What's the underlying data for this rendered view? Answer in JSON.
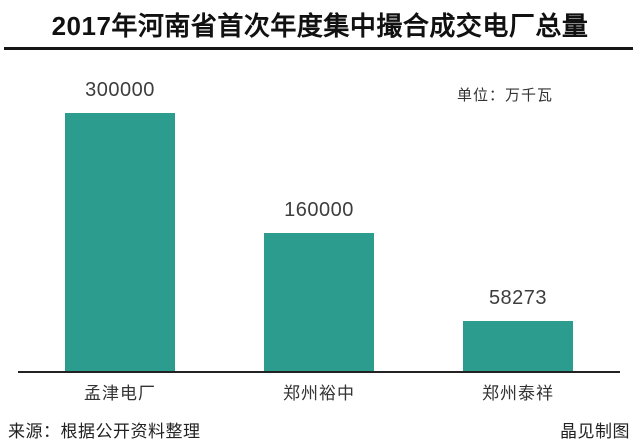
{
  "page": {
    "title": "2017年河南省首次年度集中撮合成交电厂总量",
    "unit_label": "单位：万千瓦",
    "source_label": "来源：根据公开资料整理",
    "credit_label": "晶见制图"
  },
  "chart_data": {
    "type": "bar",
    "title": "2017年河南省首次年度集中撮合成交电厂总量",
    "unit": "万千瓦",
    "categories": [
      "孟津电厂",
      "郑州裕中",
      "郑州泰祥"
    ],
    "values": [
      300000,
      160000,
      58273
    ],
    "value_labels": [
      "300000",
      "160000",
      "58273"
    ],
    "xlabel": "",
    "ylabel": "",
    "ylim": [
      0,
      300000
    ],
    "grid": false,
    "legend": false,
    "bar_color": "#2b9c8d",
    "axis_color": "#222222",
    "title_color": "#111111",
    "label_color": "#3d3d3d"
  }
}
